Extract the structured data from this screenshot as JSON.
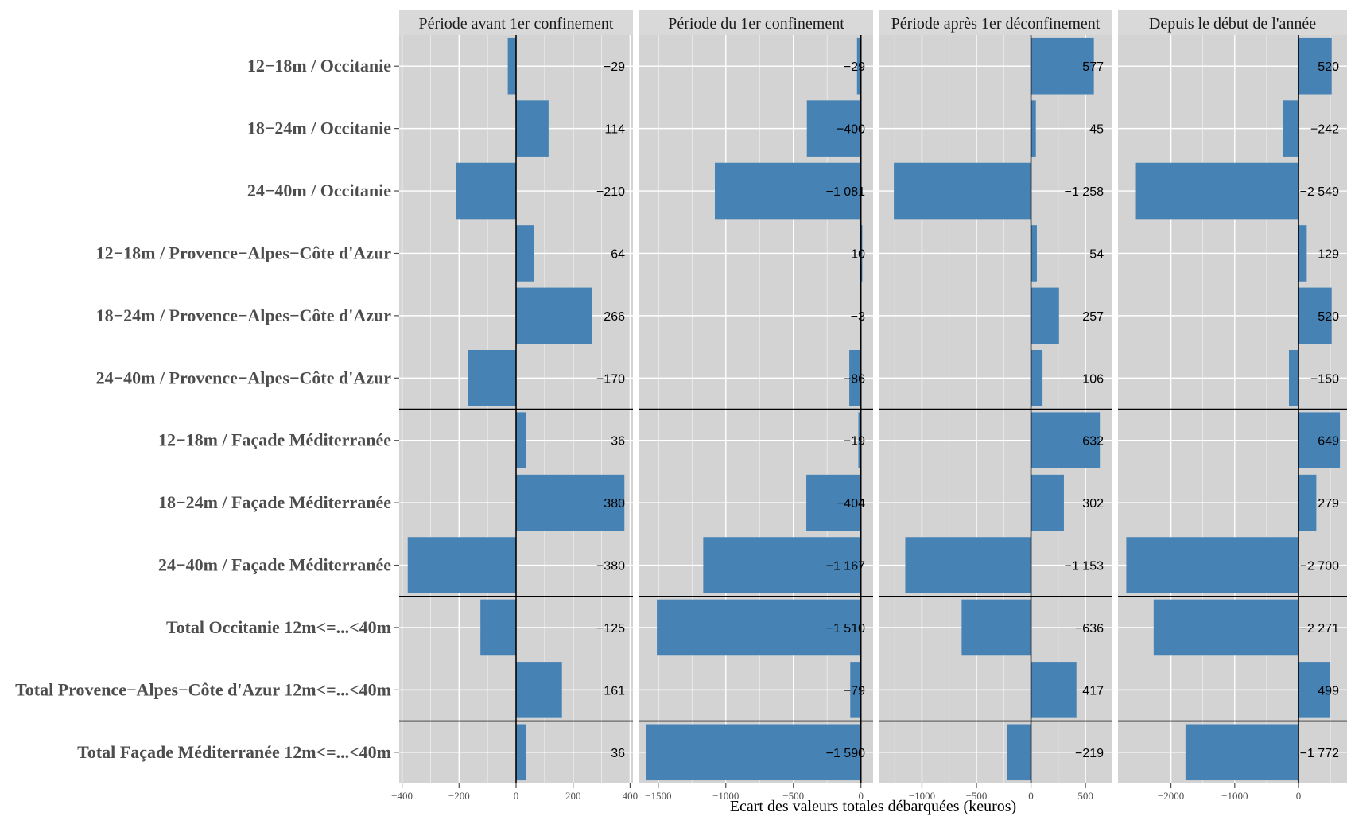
{
  "chart_data": {
    "type": "bar",
    "orientation": "horizontal",
    "categories": [
      "12−18m / Occitanie",
      "18−24m / Occitanie",
      "24−40m / Occitanie",
      "12−18m / Provence−Alpes−Côte d'Azur",
      "18−24m / Provence−Alpes−Côte d'Azur",
      "24−40m / Provence−Alpes−Côte d'Azur",
      "12−18m / Façade Méditerranée",
      "18−24m / Façade Méditerranée",
      "24−40m / Façade Méditerranée",
      "Total Occitanie 12m<=...<40m",
      "Total Provence−Alpes−Côte d'Azur 12m<=...<40m",
      "Total Façade Méditerranée 12m<=...<40m"
    ],
    "xlabel": "Ecart des valeurs totales débarquées (keuros)",
    "group_separators_after": [
      5,
      8,
      10
    ],
    "bar_color": "#4682b4",
    "panel_background": "#d3d3d3",
    "strip_background": "#d9d9d9",
    "grid": true,
    "panels": [
      {
        "title": "Période avant 1er confinement",
        "xlim": [
          -410,
          410
        ],
        "ticks": [
          -400,
          -200,
          0,
          200,
          400
        ],
        "tick_labels": [
          "−400",
          "−200",
          "0",
          "200",
          "400"
        ],
        "values": [
          -29,
          114,
          -210,
          64,
          266,
          -170,
          36,
          380,
          -380,
          -125,
          161,
          36
        ],
        "value_labels": [
          "−29",
          "114",
          "−210",
          "64",
          "266",
          "−170",
          "36",
          "380",
          "−380",
          "−125",
          "161",
          "36"
        ]
      },
      {
        "title": "Période du 1er confinement",
        "xlim": [
          -1640,
          90
        ],
        "ticks": [
          -1500,
          -1000,
          -500,
          0
        ],
        "tick_labels": [
          "−1500",
          "−1000",
          "−500",
          "0"
        ],
        "values": [
          -29,
          -400,
          -1081,
          10,
          -3,
          -86,
          -19,
          -404,
          -1167,
          -1510,
          -79,
          -1590
        ],
        "value_labels": [
          "−29",
          "−400",
          "−1 081",
          "10",
          "−3",
          "−86",
          "−19",
          "−404",
          "−1 167",
          "−1 510",
          "−79",
          "−1 590"
        ]
      },
      {
        "title": "Période après 1er déconfinement",
        "xlim": [
          -1390,
          740
        ],
        "ticks": [
          -1000,
          -500,
          0,
          500
        ],
        "tick_labels": [
          "−1000",
          "−500",
          "0",
          "500"
        ],
        "values": [
          577,
          45,
          -1258,
          54,
          257,
          106,
          632,
          302,
          -1153,
          -636,
          417,
          -219
        ],
        "value_labels": [
          "577",
          "45",
          "−1 258",
          "54",
          "257",
          "106",
          "632",
          "302",
          "−1 153",
          "−636",
          "417",
          "−219"
        ]
      },
      {
        "title": "Depuis le début de l'année",
        "xlim": [
          -2830,
          760
        ],
        "ticks": [
          -2000,
          -1000,
          0
        ],
        "tick_labels": [
          "−2000",
          "−1000",
          "0"
        ],
        "values": [
          520,
          -242,
          -2549,
          129,
          520,
          -150,
          649,
          279,
          -2700,
          -2271,
          499,
          -1772
        ],
        "value_labels": [
          "520",
          "−242",
          "−2 549",
          "129",
          "520",
          "−150",
          "649",
          "279",
          "−2 700",
          "−2 271",
          "499",
          "−1 772"
        ]
      }
    ]
  }
}
